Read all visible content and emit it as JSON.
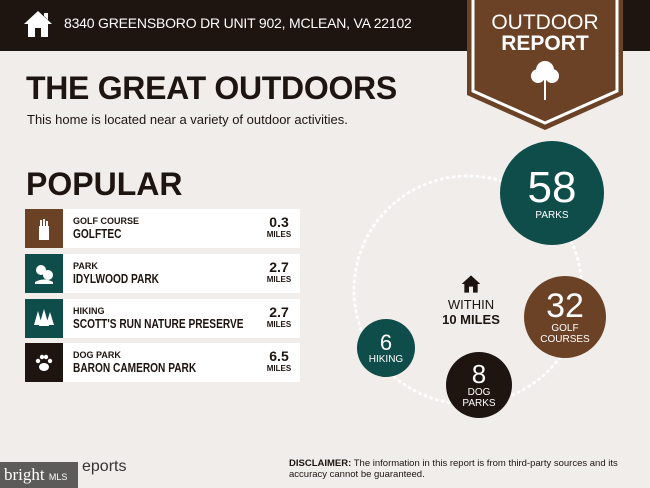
{
  "header": {
    "address": "8340 GREENSBORO DR UNIT 902, MCLEAN, VA 22102",
    "icon": "home-icon"
  },
  "badge": {
    "line1": "OUTDOOR",
    "line2": "REPORT",
    "icon": "tree-icon",
    "color": "#6b4226"
  },
  "title": "THE GREAT OUTDOORS",
  "subtitle": "This home is located near a variety of outdoor activities.",
  "popular": {
    "heading": "POPULAR",
    "items": [
      {
        "category": "GOLF COURSE",
        "name": "GOLFTEC",
        "distance": "0.3",
        "unit": "MILES",
        "icon": "golf-bag-icon",
        "color": "#6b4226"
      },
      {
        "category": "PARK",
        "name": "IDYLWOOD PARK",
        "distance": "2.7",
        "unit": "MILES",
        "icon": "park-trees-icon",
        "color": "#0e4d4a"
      },
      {
        "category": "HIKING",
        "name": "SCOTT'S RUN NATURE PRESERVE",
        "distance": "2.7",
        "unit": "MILES",
        "icon": "pine-trees-icon",
        "color": "#0e4d4a"
      },
      {
        "category": "DOG PARK",
        "name": "BARON CAMERON PARK",
        "distance": "6.5",
        "unit": "MILES",
        "icon": "paw-icon",
        "color": "#1e1410"
      }
    ]
  },
  "within": {
    "line1": "WITHIN",
    "line2": "10 MILES",
    "icon": "home-icon"
  },
  "counts": [
    {
      "value": "58",
      "label": "PARKS",
      "color": "#0e4d4a"
    },
    {
      "value": "32",
      "label": "GOLF COURSES",
      "color": "#6b4226"
    },
    {
      "value": "8",
      "label": "DOG PARKS",
      "color": "#1e1410"
    },
    {
      "value": "6",
      "label": "HIKING",
      "color": "#0e4d4a"
    }
  ],
  "footer": {
    "logo": "bright",
    "logo_small": "MLS",
    "reports": "eports",
    "disclaimer_label": "DISCLAIMER:",
    "disclaimer": " The information in this report is from third-party sources and its accuracy cannot be guaranteed."
  }
}
